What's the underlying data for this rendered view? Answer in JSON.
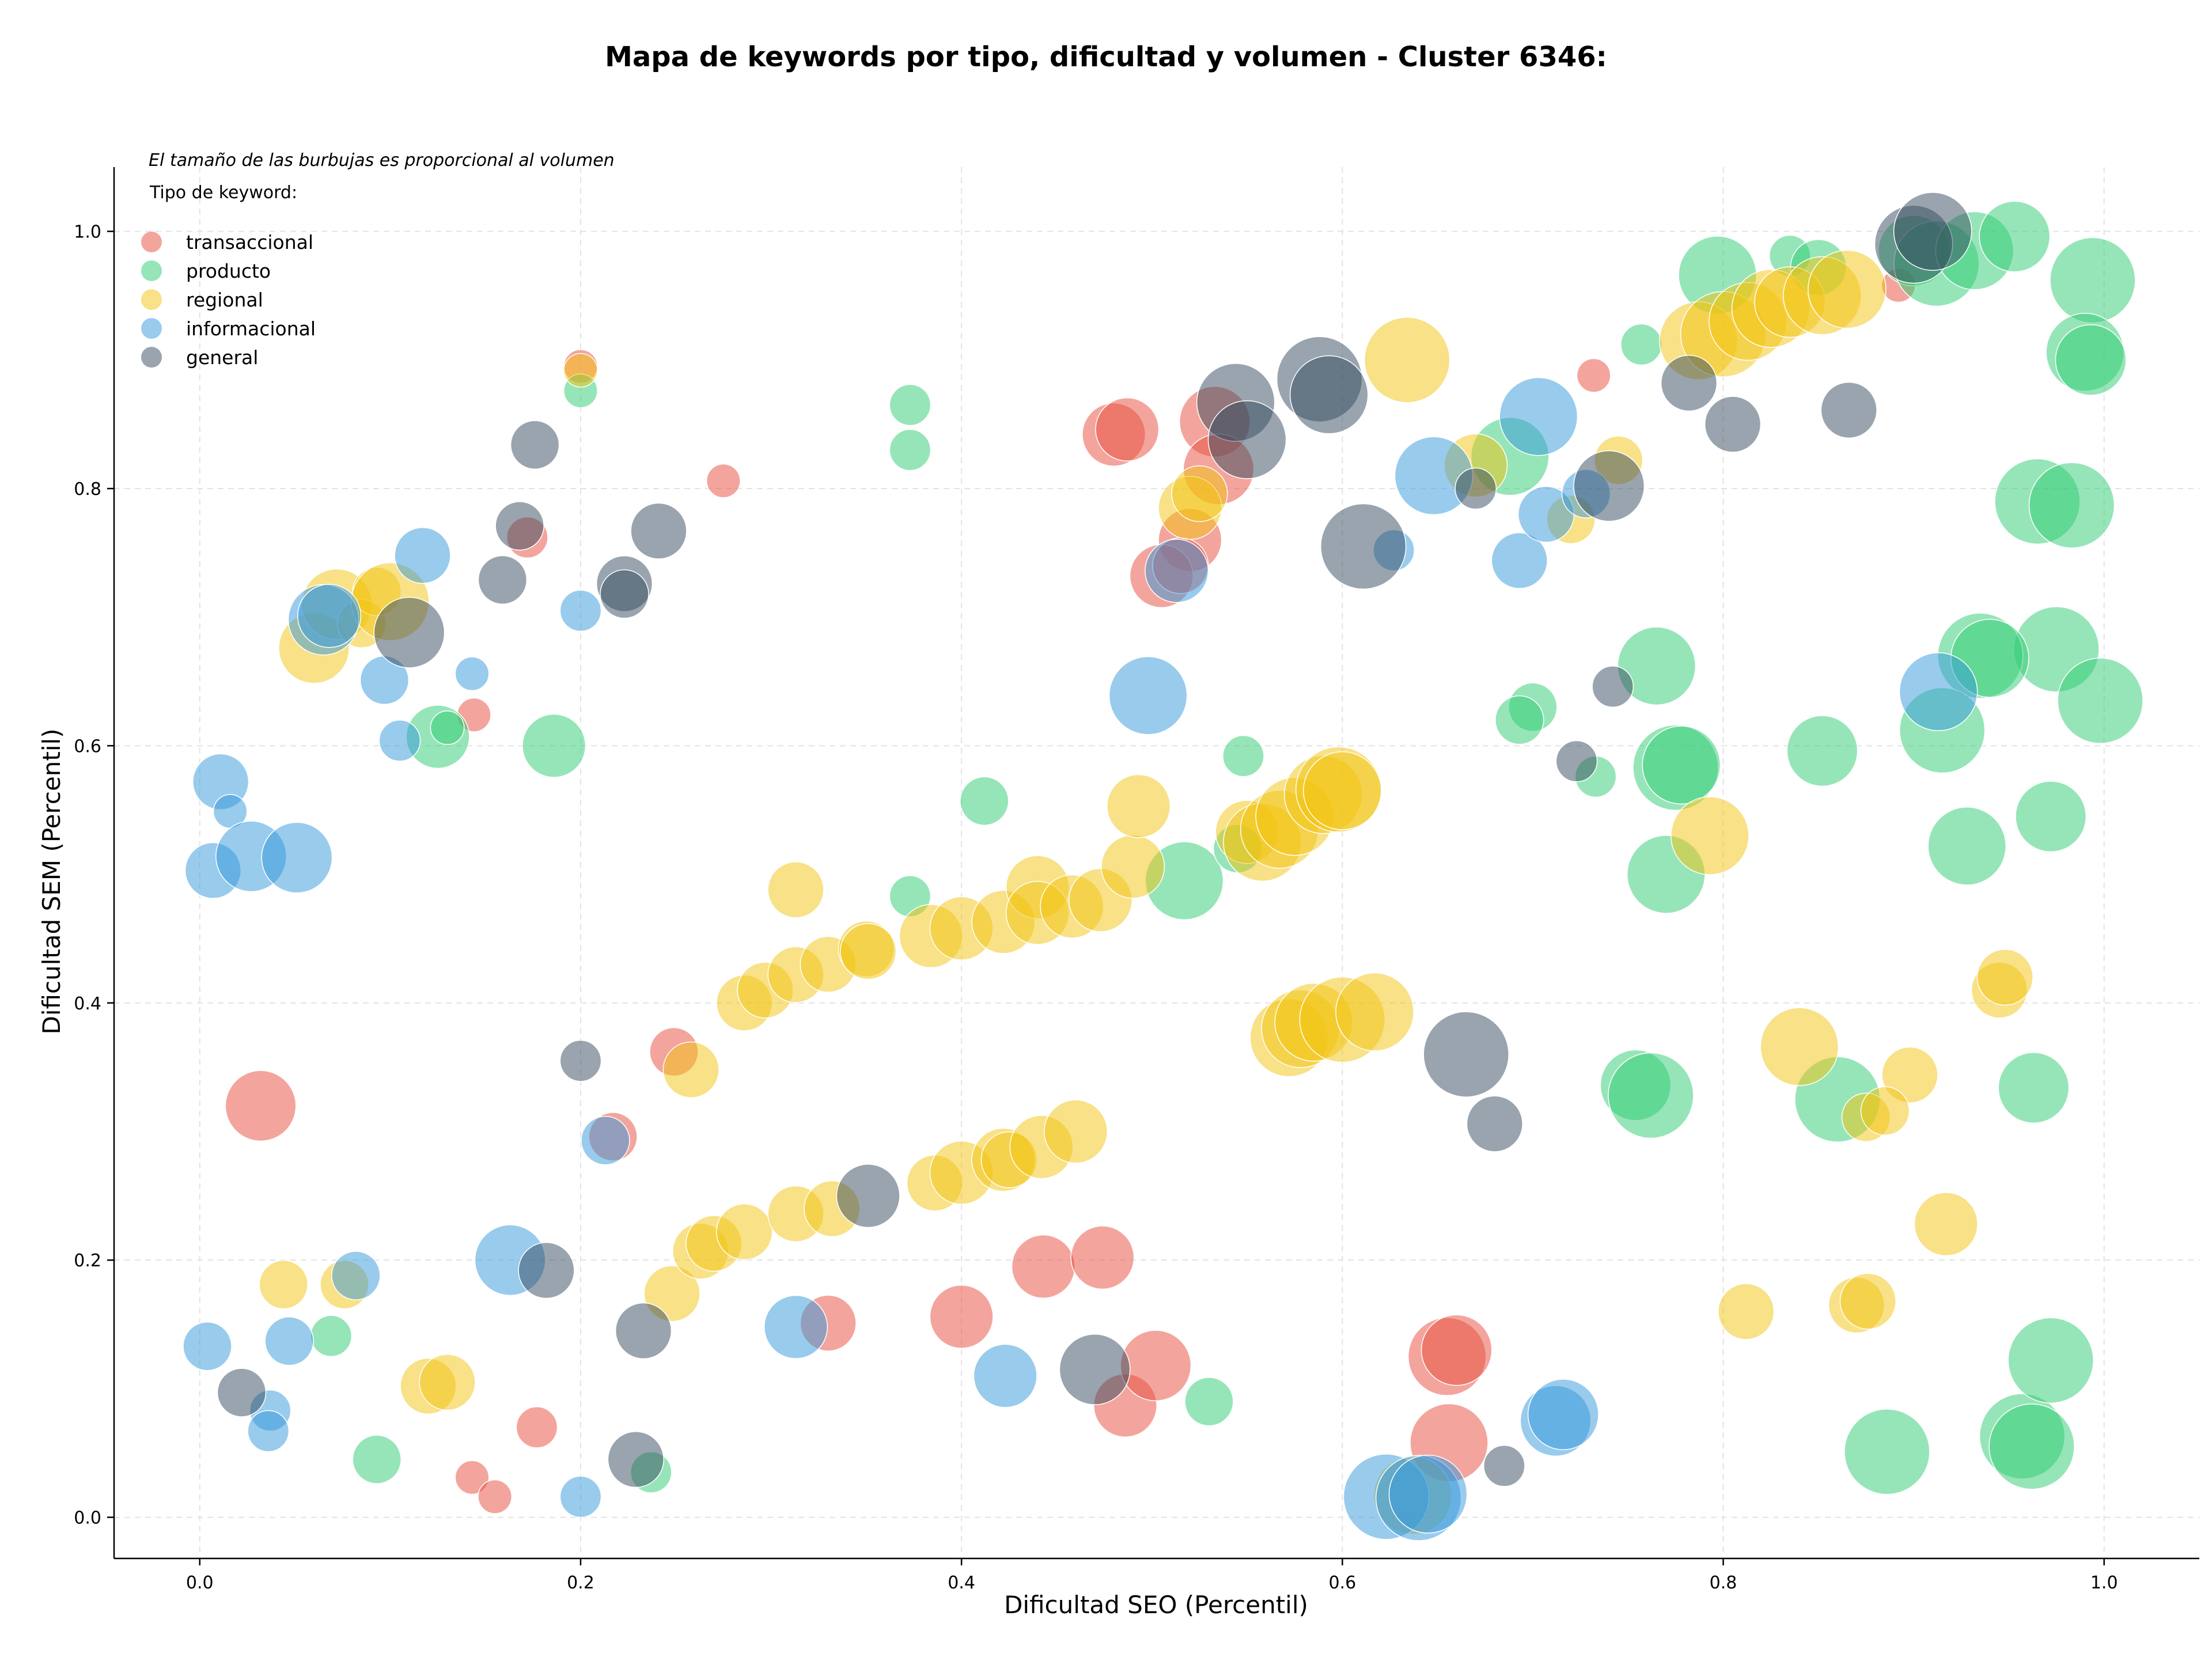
{
  "chart_data": {
    "type": "scatter",
    "title": "Mapa de keywords por tipo, dificultad y volumen - Cluster 6346:",
    "xlabel": "Dificultad SEO (Percentil)",
    "ylabel": "Dificultad SEM (Percentil)",
    "xlim": [
      -0.045,
      1.05
    ],
    "ylim": [
      -0.032,
      1.05
    ],
    "xticks": [
      "0.0",
      "0.2",
      "0.4",
      "0.6",
      "0.8",
      "1.0"
    ],
    "yticks": [
      "0.0",
      "0.2",
      "0.4",
      "0.6",
      "0.8",
      "1.0"
    ],
    "xtick_values": [
      0,
      0.2,
      0.4,
      0.6,
      0.8,
      1.0
    ],
    "ytick_values": [
      0,
      0.2,
      0.4,
      0.6,
      0.8,
      1.0
    ],
    "grid": true,
    "size_note": "El tamaño de las burbujas es proporcional al volumen",
    "legend_title": "Tipo de keyword:",
    "legend_position": "top-left",
    "series": [
      {
        "name": "transaccional",
        "color": "#e74c3c",
        "points": [
          [
            0.2,
            0.895,
            3
          ],
          [
            0.275,
            0.806,
            3
          ],
          [
            0.172,
            0.762,
            4
          ],
          [
            0.144,
            0.624,
            3
          ],
          [
            0.032,
            0.32,
            8
          ],
          [
            0.249,
            0.362,
            5
          ],
          [
            0.217,
            0.296,
            5
          ],
          [
            0.33,
            0.151,
            6
          ],
          [
            0.4,
            0.156,
            7
          ],
          [
            0.443,
            0.195,
            7
          ],
          [
            0.474,
            0.202,
            7
          ],
          [
            0.486,
            0.087,
            7
          ],
          [
            0.502,
            0.118,
            8
          ],
          [
            0.655,
            0.125,
            9
          ],
          [
            0.66,
            0.13,
            8
          ],
          [
            0.656,
            0.058,
            9
          ],
          [
            0.177,
            0.07,
            4
          ],
          [
            0.143,
            0.031,
            3
          ],
          [
            0.155,
            0.016,
            3
          ],
          [
            0.48,
            0.842,
            7
          ],
          [
            0.487,
            0.846,
            7
          ],
          [
            0.533,
            0.852,
            8
          ],
          [
            0.535,
            0.815,
            8
          ],
          [
            0.52,
            0.76,
            7
          ],
          [
            0.505,
            0.732,
            7
          ],
          [
            0.515,
            0.74,
            6
          ],
          [
            0.732,
            0.888,
            3
          ],
          [
            0.892,
            0.958,
            3
          ]
        ]
      },
      {
        "name": "producto",
        "color": "#2ecc71",
        "points": [
          [
            0.2,
            0.876,
            3
          ],
          [
            0.373,
            0.865,
            4
          ],
          [
            0.373,
            0.83,
            4
          ],
          [
            0.125,
            0.607,
            7
          ],
          [
            0.186,
            0.6,
            7
          ],
          [
            0.13,
            0.614,
            3
          ],
          [
            0.069,
            0.141,
            4
          ],
          [
            0.093,
            0.045,
            5
          ],
          [
            0.237,
            0.035,
            4
          ],
          [
            0.412,
            0.557,
            5
          ],
          [
            0.373,
            0.483,
            4
          ],
          [
            0.517,
            0.495,
            9
          ],
          [
            0.53,
            0.09,
            5
          ],
          [
            0.548,
            0.592,
            4
          ],
          [
            0.545,
            0.52,
            5
          ],
          [
            0.757,
            0.912,
            4
          ],
          [
            0.797,
            0.966,
            9
          ],
          [
            0.835,
            0.981,
            4
          ],
          [
            0.85,
            0.972,
            6
          ],
          [
            0.9,
            0.985,
            8
          ],
          [
            0.912,
            0.975,
            10
          ],
          [
            0.932,
            0.985,
            9
          ],
          [
            0.953,
            0.996,
            8
          ],
          [
            0.994,
            0.962,
            10
          ],
          [
            0.99,
            0.906,
            9
          ],
          [
            0.993,
            0.9,
            8
          ],
          [
            0.965,
            0.79,
            10
          ],
          [
            0.983,
            0.787,
            10
          ],
          [
            0.688,
            0.825,
            9
          ],
          [
            0.975,
            0.675,
            10
          ],
          [
            0.998,
            0.635,
            10
          ],
          [
            0.935,
            0.67,
            10
          ],
          [
            0.94,
            0.668,
            9
          ],
          [
            0.765,
            0.662,
            9
          ],
          [
            0.915,
            0.612,
            10
          ],
          [
            0.7,
            0.63,
            5
          ],
          [
            0.693,
            0.62,
            5
          ],
          [
            0.733,
            0.576,
            4
          ],
          [
            0.775,
            0.583,
            10
          ],
          [
            0.778,
            0.585,
            9
          ],
          [
            0.852,
            0.596,
            8
          ],
          [
            0.77,
            0.5,
            9
          ],
          [
            0.928,
            0.522,
            9
          ],
          [
            0.972,
            0.545,
            8
          ],
          [
            0.754,
            0.336,
            8
          ],
          [
            0.762,
            0.328,
            10
          ],
          [
            0.86,
            0.325,
            10
          ],
          [
            0.963,
            0.334,
            8
          ],
          [
            0.886,
            0.051,
            10
          ],
          [
            0.957,
            0.063,
            10
          ],
          [
            0.962,
            0.055,
            10
          ],
          [
            0.972,
            0.122,
            10
          ]
        ]
      },
      {
        "name": "regional",
        "color": "#f1c40f",
        "points": [
          [
            0.2,
            0.892,
            3
          ],
          [
            0.06,
            0.676,
            8
          ],
          [
            0.072,
            0.71,
            8
          ],
          [
            0.085,
            0.695,
            5
          ],
          [
            0.093,
            0.72,
            5
          ],
          [
            0.1,
            0.712,
            9
          ],
          [
            0.044,
            0.181,
            5
          ],
          [
            0.076,
            0.181,
            5
          ],
          [
            0.12,
            0.102,
            6
          ],
          [
            0.13,
            0.105,
            6
          ],
          [
            0.248,
            0.174,
            6
          ],
          [
            0.258,
            0.348,
            6
          ],
          [
            0.263,
            0.207,
            6
          ],
          [
            0.27,
            0.213,
            6
          ],
          [
            0.286,
            0.222,
            6
          ],
          [
            0.286,
            0.4,
            6
          ],
          [
            0.297,
            0.41,
            6
          ],
          [
            0.313,
            0.422,
            6
          ],
          [
            0.313,
            0.236,
            6
          ],
          [
            0.313,
            0.488,
            6
          ],
          [
            0.33,
            0.43,
            6
          ],
          [
            0.332,
            0.24,
            6
          ],
          [
            0.35,
            0.442,
            6
          ],
          [
            0.351,
            0.44,
            6
          ],
          [
            0.384,
            0.452,
            7
          ],
          [
            0.386,
            0.26,
            6
          ],
          [
            0.4,
            0.268,
            7
          ],
          [
            0.4,
            0.458,
            7
          ],
          [
            0.422,
            0.278,
            7
          ],
          [
            0.425,
            0.278,
            6
          ],
          [
            0.422,
            0.463,
            7
          ],
          [
            0.44,
            0.49,
            7
          ],
          [
            0.442,
            0.288,
            7
          ],
          [
            0.44,
            0.47,
            7
          ],
          [
            0.458,
            0.475,
            7
          ],
          [
            0.46,
            0.3,
            7
          ],
          [
            0.473,
            0.48,
            7
          ],
          [
            0.49,
            0.506,
            7
          ],
          [
            0.493,
            0.553,
            7
          ],
          [
            0.52,
            0.785,
            7
          ],
          [
            0.525,
            0.796,
            6
          ],
          [
            0.55,
            0.533,
            7
          ],
          [
            0.558,
            0.525,
            9
          ],
          [
            0.567,
            0.535,
            9
          ],
          [
            0.575,
            0.545,
            9
          ],
          [
            0.59,
            0.562,
            9
          ],
          [
            0.598,
            0.566,
            10
          ],
          [
            0.6,
            0.565,
            9
          ],
          [
            0.572,
            0.373,
            9
          ],
          [
            0.578,
            0.38,
            9
          ],
          [
            0.585,
            0.385,
            9
          ],
          [
            0.6,
            0.387,
            10
          ],
          [
            0.617,
            0.393,
            9
          ],
          [
            0.634,
            0.9,
            10
          ],
          [
            0.637,
            0.017,
            9
          ],
          [
            0.67,
            0.818,
            7
          ],
          [
            0.72,
            0.776,
            5
          ],
          [
            0.745,
            0.822,
            5
          ],
          [
            0.787,
            0.915,
            9
          ],
          [
            0.8,
            0.92,
            10
          ],
          [
            0.813,
            0.93,
            9
          ],
          [
            0.825,
            0.94,
            9
          ],
          [
            0.835,
            0.945,
            8
          ],
          [
            0.852,
            0.95,
            9
          ],
          [
            0.865,
            0.955,
            9
          ],
          [
            0.793,
            0.53,
            9
          ],
          [
            0.84,
            0.366,
            9
          ],
          [
            0.898,
            0.344,
            6
          ],
          [
            0.875,
            0.311,
            5
          ],
          [
            0.885,
            0.316,
            5
          ],
          [
            0.917,
            0.228,
            7
          ],
          [
            0.812,
            0.16,
            6
          ],
          [
            0.87,
            0.165,
            6
          ],
          [
            0.876,
            0.168,
            6
          ],
          [
            0.945,
            0.41,
            6
          ],
          [
            0.948,
            0.42,
            6
          ]
        ]
      },
      {
        "name": "informacional",
        "color": "#3498db",
        "points": [
          [
            0.2,
            0.705,
            4
          ],
          [
            0.117,
            0.748,
            6
          ],
          [
            0.065,
            0.698,
            8
          ],
          [
            0.068,
            0.701,
            7
          ],
          [
            0.143,
            0.656,
            3
          ],
          [
            0.097,
            0.651,
            5
          ],
          [
            0.105,
            0.604,
            4
          ],
          [
            0.011,
            0.572,
            6
          ],
          [
            0.016,
            0.549,
            3
          ],
          [
            0.007,
            0.503,
            6
          ],
          [
            0.027,
            0.514,
            8
          ],
          [
            0.051,
            0.513,
            8
          ],
          [
            0.004,
            0.133,
            5
          ],
          [
            0.047,
            0.137,
            5
          ],
          [
            0.037,
            0.083,
            4
          ],
          [
            0.036,
            0.067,
            4
          ],
          [
            0.082,
            0.188,
            5
          ],
          [
            0.163,
            0.2,
            8
          ],
          [
            0.2,
            0.016,
            4
          ],
          [
            0.213,
            0.293,
            5
          ],
          [
            0.313,
            0.148,
            7
          ],
          [
            0.423,
            0.11,
            7
          ],
          [
            0.498,
            0.639,
            9
          ],
          [
            0.513,
            0.736,
            7
          ],
          [
            0.627,
            0.752,
            4
          ],
          [
            0.648,
            0.81,
            9
          ],
          [
            0.693,
            0.744,
            6
          ],
          [
            0.703,
            0.856,
            9
          ],
          [
            0.707,
            0.78,
            6
          ],
          [
            0.728,
            0.796,
            5
          ],
          [
            0.913,
            0.642,
            9
          ],
          [
            0.712,
            0.075,
            8
          ],
          [
            0.716,
            0.08,
            8
          ],
          [
            0.623,
            0.016,
            10
          ],
          [
            0.64,
            0.015,
            10
          ],
          [
            0.645,
            0.018,
            9
          ]
        ]
      },
      {
        "name": "general",
        "color": "#34495e",
        "points": [
          [
            0.176,
            0.834,
            5
          ],
          [
            0.241,
            0.767,
            6
          ],
          [
            0.168,
            0.771,
            5
          ],
          [
            0.159,
            0.729,
            5
          ],
          [
            0.223,
            0.726,
            6
          ],
          [
            0.223,
            0.718,
            5
          ],
          [
            0.11,
            0.688,
            8
          ],
          [
            0.2,
            0.355,
            4
          ],
          [
            0.182,
            0.192,
            6
          ],
          [
            0.233,
            0.145,
            6
          ],
          [
            0.022,
            0.097,
            5
          ],
          [
            0.229,
            0.045,
            6
          ],
          [
            0.351,
            0.25,
            7
          ],
          [
            0.47,
            0.115,
            8
          ],
          [
            0.544,
            0.867,
            9
          ],
          [
            0.55,
            0.838,
            9
          ],
          [
            0.588,
            0.885,
            10
          ],
          [
            0.593,
            0.873,
            9
          ],
          [
            0.611,
            0.755,
            10
          ],
          [
            0.665,
            0.36,
            10
          ],
          [
            0.68,
            0.306,
            6
          ],
          [
            0.685,
            0.04,
            4
          ],
          [
            0.67,
            0.8,
            4
          ],
          [
            0.74,
            0.802,
            8
          ],
          [
            0.742,
            0.646,
            4
          ],
          [
            0.723,
            0.588,
            4
          ],
          [
            0.782,
            0.882,
            6
          ],
          [
            0.805,
            0.85,
            6
          ],
          [
            0.866,
            0.861,
            6
          ],
          [
            0.9,
            0.99,
            9
          ],
          [
            0.91,
            1.0,
            9
          ]
        ]
      }
    ]
  }
}
